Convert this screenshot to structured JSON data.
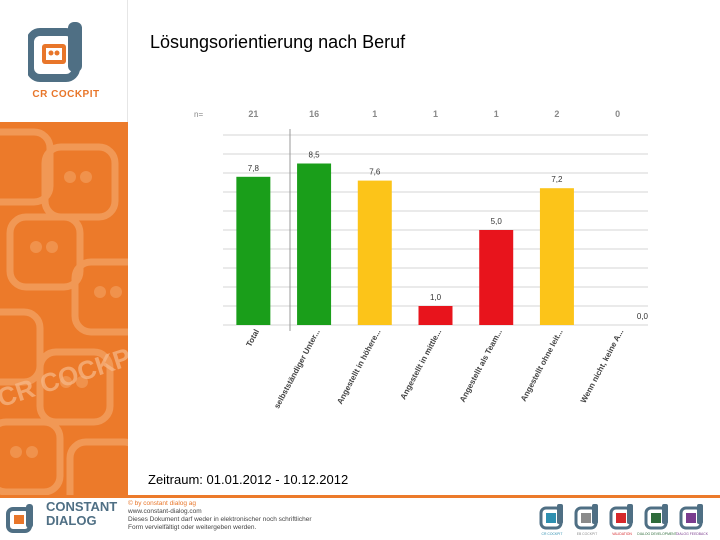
{
  "slide": {
    "title": "Lösungsorientierung nach Beruf",
    "timeframe": "Zeitraum: 01.01.2012 - 10.12.2012"
  },
  "branding": {
    "logo_text": "CR COCKPIT",
    "watermark_text": "CR COCKPIT",
    "footer_brand_line1": "CONSTANT",
    "footer_brand_line2": "DIALOG",
    "footer_copyright": "© by constant dialog ag",
    "footer_url": "www.constant-dialog.com",
    "footer_notice_1": "Dieses Dokument darf weder in elektronischer noch schriftlicher",
    "footer_notice_2": "Form vervielfältigt oder weitergeben werden.",
    "footer_product_labels": [
      "CR COCKPIT",
      "EB COCKPIT",
      "VALIDATION",
      "DIALOG DEVELOPMENT",
      "DIALOG FEEDBACK"
    ],
    "product_colors": [
      "#2e8fb0",
      "#8a8a8a",
      "#d6282b",
      "#2e6b3a",
      "#7a3c8e"
    ]
  },
  "chart_data": {
    "type": "bar",
    "n_label": "n=",
    "n_values": [
      "21",
      "16",
      "1",
      "1",
      "1",
      "2",
      "0"
    ],
    "categories": [
      "Total",
      "selbstständiger Unter...",
      "Angestellt in höhere...",
      "Angestellt in mittle...",
      "Angestellt als Team...",
      "Angestellt ohne leit...",
      "Wenn nicht, keine A..."
    ],
    "values": [
      7.8,
      8.5,
      7.6,
      1.0,
      5.0,
      7.2,
      0.0
    ],
    "value_labels": [
      "7,8",
      "8,5",
      "7,6",
      "1,0",
      "5,0",
      "7,2",
      "0,0"
    ],
    "colors": [
      "#1a9e1a",
      "#1a9e1a",
      "#fcc419",
      "#e8141c",
      "#e8141c",
      "#fcc419",
      "#fcc419"
    ],
    "ylim": [
      0,
      10
    ],
    "grid": true,
    "title": "",
    "xlabel": "",
    "ylabel": ""
  }
}
